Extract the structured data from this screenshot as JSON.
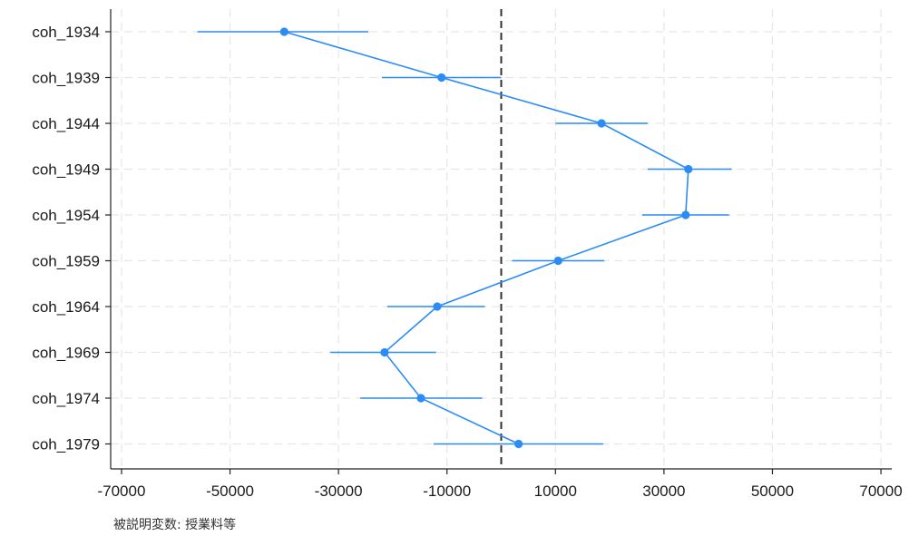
{
  "chart_data": {
    "type": "scatter",
    "orientation": "horizontal",
    "categories": [
      "coh_1934",
      "coh_1939",
      "coh_1944",
      "coh_1949",
      "coh_1954",
      "coh_1959",
      "coh_1964",
      "coh_1969",
      "coh_1974",
      "coh_1979"
    ],
    "series": [
      {
        "values": [
          -40000,
          -11000,
          18500,
          34500,
          34000,
          10500,
          -11800,
          -21500,
          -14800,
          3200
        ],
        "ci_low": [
          -56000,
          -22000,
          10000,
          27000,
          26000,
          2000,
          -21000,
          -31500,
          -26000,
          -12500
        ],
        "ci_high": [
          -24500,
          0,
          27000,
          42500,
          42000,
          19000,
          -3000,
          -12000,
          -3500,
          18800
        ],
        "connected": true
      }
    ],
    "reference_line": {
      "x": 0,
      "style": "dashed"
    },
    "xlim": [
      -72000,
      72000
    ],
    "xticks": [
      -70000,
      -50000,
      -30000,
      -10000,
      10000,
      30000,
      50000,
      70000
    ],
    "xlabel": "",
    "ylabel": "",
    "title": "",
    "grid": true,
    "note": "被説明変数: 授業料等",
    "colors": {
      "series": "#2b8cf6",
      "reference": "#333333",
      "grid": "#e6e6e6",
      "axis": "#222222"
    }
  }
}
